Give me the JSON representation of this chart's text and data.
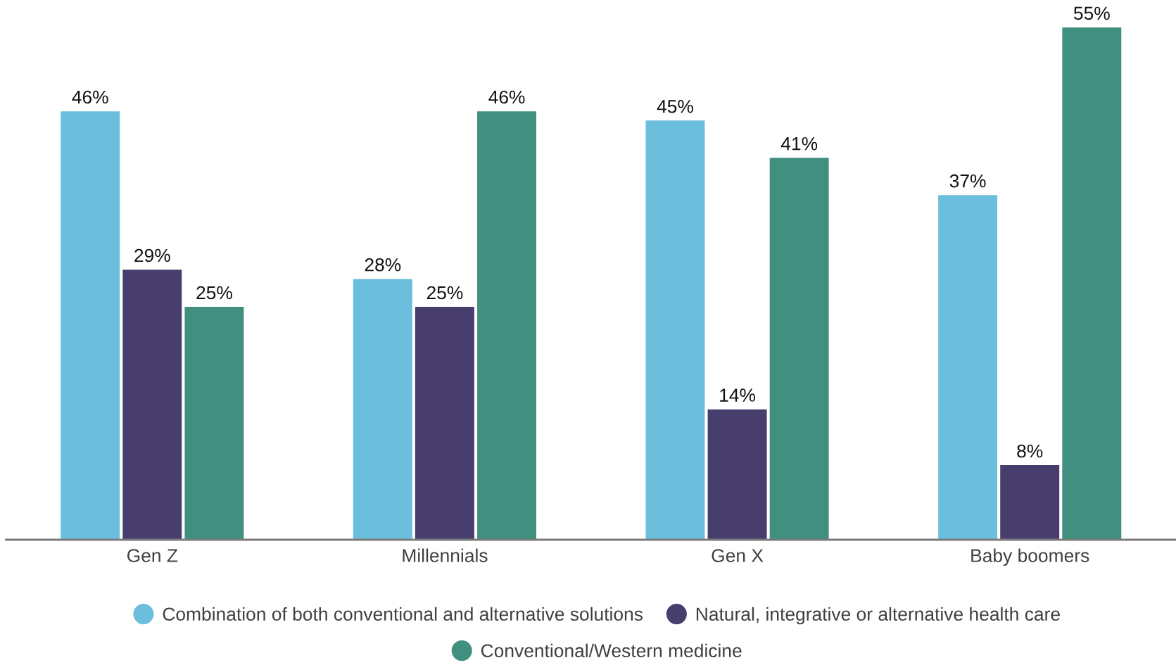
{
  "chart_data": {
    "type": "bar",
    "categories": [
      "Gen Z",
      "Millennials",
      "Gen X",
      "Baby boomers"
    ],
    "series": [
      {
        "name": "Combination of both conventional and alternative solutions",
        "color": "#6cbedd",
        "values": [
          46,
          28,
          45,
          37
        ],
        "value_labels": [
          "46%",
          "28%",
          "45%",
          "37%"
        ]
      },
      {
        "name": "Natural, integrative or alternative health care",
        "color": "#483e6e",
        "values": [
          29,
          25,
          14,
          8
        ],
        "value_labels": [
          "29%",
          "25%",
          "14%",
          "8%"
        ]
      },
      {
        "name": "Conventional/Western medicine",
        "color": "#418f7f",
        "values": [
          25,
          46,
          41,
          55
        ],
        "value_labels": [
          "25%",
          "46%",
          "41%",
          "55%"
        ]
      }
    ],
    "legend": "bottom",
    "tick_labels": "x"
  }
}
